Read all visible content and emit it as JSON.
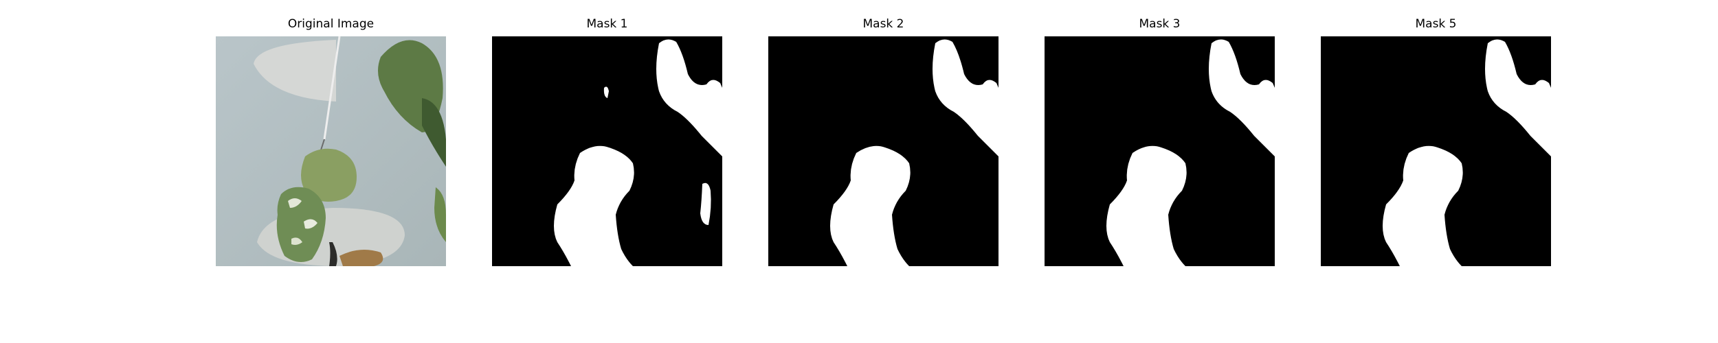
{
  "panels": [
    {
      "title": "Original Image",
      "kind": "photo"
    },
    {
      "title": "Mask 1",
      "kind": "mask"
    },
    {
      "title": "Mask 2",
      "kind": "mask"
    },
    {
      "title": "Mask 3",
      "kind": "mask"
    },
    {
      "title": "Mask 5",
      "kind": "mask"
    }
  ],
  "colors": {
    "background": "#ffffff",
    "mask_background": "#000000",
    "mask_foreground": "#ffffff",
    "photo_wall": "#b7c3c6",
    "photo_shadow": "#c9cdcc",
    "leaf_dark": "#4f6a3d",
    "leaf_light": "#8fa36b"
  }
}
